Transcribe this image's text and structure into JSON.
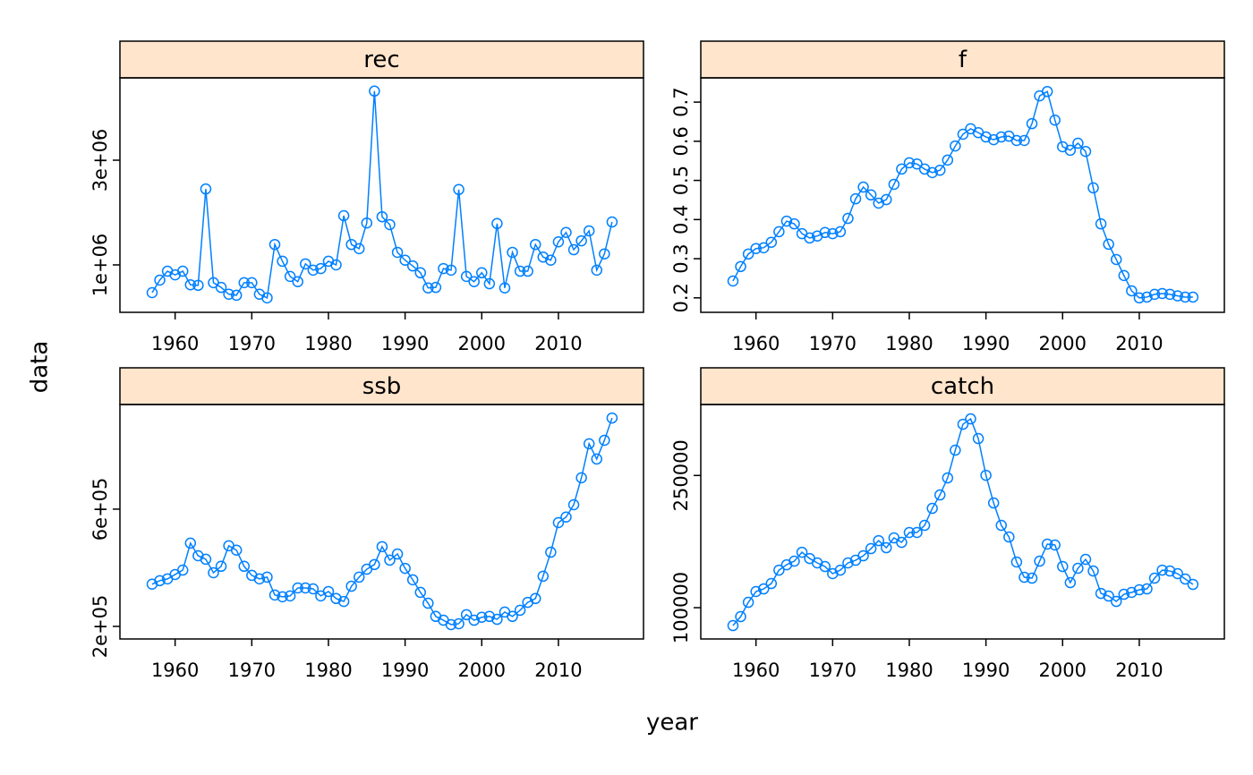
{
  "x_label": "year",
  "y_label": "data",
  "chart_data": [
    {
      "type": "line",
      "title": "rec",
      "color": "#0080ff",
      "x": [
        1957,
        1958,
        1959,
        1960,
        1961,
        1962,
        1963,
        1964,
        1965,
        1966,
        1967,
        1968,
        1969,
        1970,
        1971,
        1972,
        1973,
        1974,
        1975,
        1976,
        1977,
        1978,
        1979,
        1980,
        1981,
        1982,
        1983,
        1984,
        1985,
        1986,
        1987,
        1988,
        1989,
        1990,
        1991,
        1992,
        1993,
        1994,
        1995,
        1996,
        1997,
        1998,
        1999,
        2000,
        2001,
        2002,
        2003,
        2004,
        2005,
        2006,
        2007,
        2008,
        2009,
        2010,
        2011,
        2012,
        2013,
        2014,
        2015,
        2016,
        2017
      ],
      "values": [
        470000,
        710000,
        880000,
        810000,
        880000,
        620000,
        610000,
        2450000,
        660000,
        570000,
        440000,
        420000,
        660000,
        660000,
        440000,
        370000,
        1390000,
        1070000,
        780000,
        680000,
        1020000,
        900000,
        930000,
        1070000,
        1000000,
        1940000,
        1390000,
        1310000,
        1800000,
        4320000,
        1920000,
        1770000,
        1240000,
        1090000,
        980000,
        850000,
        560000,
        570000,
        930000,
        900000,
        2440000,
        780000,
        680000,
        850000,
        640000,
        1790000,
        560000,
        1240000,
        880000,
        880000,
        1390000,
        1150000,
        1090000,
        1440000,
        1620000,
        1290000,
        1460000,
        1650000,
        900000,
        1210000,
        1820000
      ],
      "xlim": [
        1952.8,
        2021.1
      ],
      "xticks": [
        1960,
        1970,
        1980,
        1990,
        2000,
        2010
      ],
      "ylim": [
        94000,
        4573000
      ],
      "yticks": [
        {
          "value": 1000000,
          "label": "1e+06"
        },
        {
          "value": 3000000,
          "label": "3e+06"
        }
      ]
    },
    {
      "type": "line",
      "title": "f",
      "color": "#0080ff",
      "x": [
        1957,
        1958,
        1959,
        1960,
        1961,
        1962,
        1963,
        1964,
        1965,
        1966,
        1967,
        1968,
        1969,
        1970,
        1971,
        1972,
        1973,
        1974,
        1975,
        1976,
        1977,
        1978,
        1979,
        1980,
        1981,
        1982,
        1983,
        1984,
        1985,
        1986,
        1987,
        1988,
        1989,
        1990,
        1991,
        1992,
        1993,
        1994,
        1995,
        1996,
        1997,
        1998,
        1999,
        2000,
        2001,
        2002,
        2003,
        2004,
        2005,
        2006,
        2007,
        2008,
        2009,
        2010,
        2011,
        2012,
        2013,
        2014,
        2015,
        2016,
        2017
      ],
      "values": [
        0.243,
        0.28,
        0.312,
        0.326,
        0.328,
        0.342,
        0.369,
        0.396,
        0.389,
        0.364,
        0.353,
        0.358,
        0.367,
        0.364,
        0.369,
        0.403,
        0.453,
        0.483,
        0.463,
        0.442,
        0.451,
        0.49,
        0.529,
        0.545,
        0.542,
        0.529,
        0.52,
        0.526,
        0.552,
        0.588,
        0.618,
        0.632,
        0.622,
        0.611,
        0.604,
        0.611,
        0.613,
        0.602,
        0.602,
        0.645,
        0.716,
        0.727,
        0.654,
        0.586,
        0.577,
        0.595,
        0.574,
        0.481,
        0.389,
        0.337,
        0.298,
        0.257,
        0.218,
        0.2,
        0.202,
        0.209,
        0.211,
        0.209,
        0.205,
        0.202,
        0.202
      ],
      "xlim": [
        1952.8,
        2021.1
      ],
      "xticks": [
        1960,
        1970,
        1980,
        1990,
        2000,
        2010
      ],
      "ylim": [
        0.163,
        0.762
      ],
      "yticks": [
        0.2,
        0.3,
        0.4,
        0.5,
        0.6,
        0.7
      ]
    },
    {
      "type": "line",
      "title": "ssb",
      "color": "#0080ff",
      "x": [
        1957,
        1958,
        1959,
        1960,
        1961,
        1962,
        1963,
        1964,
        1965,
        1966,
        1967,
        1968,
        1969,
        1970,
        1971,
        1972,
        1973,
        1974,
        1975,
        1976,
        1977,
        1978,
        1979,
        1980,
        1981,
        1982,
        1983,
        1984,
        1985,
        1986,
        1987,
        1988,
        1989,
        1990,
        1991,
        1992,
        1993,
        1994,
        1995,
        1996,
        1997,
        1998,
        1999,
        2000,
        2001,
        2002,
        2003,
        2004,
        2005,
        2006,
        2007,
        2008,
        2009,
        2010,
        2011,
        2012,
        2013,
        2014,
        2015,
        2016,
        2017
      ],
      "values": [
        344000,
        356000,
        362000,
        377000,
        392000,
        484000,
        441000,
        429000,
        383000,
        405000,
        475000,
        460000,
        405000,
        374000,
        362000,
        368000,
        307000,
        301000,
        304000,
        331000,
        331000,
        328000,
        304000,
        319000,
        295000,
        285000,
        337000,
        368000,
        395000,
        411000,
        472000,
        426000,
        447000,
        398000,
        359000,
        316000,
        279000,
        234000,
        221000,
        206000,
        209000,
        240000,
        221000,
        231000,
        234000,
        224000,
        249000,
        234000,
        255000,
        282000,
        295000,
        371000,
        453000,
        554000,
        573000,
        615000,
        707000,
        823000,
        771000,
        835000,
        911000
      ],
      "xlim": [
        1952.8,
        2021.1
      ],
      "xticks": [
        1960,
        1970,
        1980,
        1990,
        2000,
        2010
      ],
      "ylim": [
        157000,
        957000
      ],
      "yticks": [
        {
          "value": 200000,
          "label": "2e+05"
        },
        {
          "value": 600000,
          "label": "6e+05"
        }
      ]
    },
    {
      "type": "line",
      "title": "catch",
      "color": "#0080ff",
      "x": [
        1957,
        1958,
        1959,
        1960,
        1961,
        1962,
        1963,
        1964,
        1965,
        1966,
        1967,
        1968,
        1969,
        1970,
        1971,
        1972,
        1973,
        1974,
        1975,
        1976,
        1977,
        1978,
        1979,
        1980,
        1981,
        1982,
        1983,
        1984,
        1985,
        1986,
        1987,
        1988,
        1989,
        1990,
        1991,
        1992,
        1993,
        1994,
        1995,
        1996,
        1997,
        1998,
        1999,
        2000,
        2001,
        2002,
        2003,
        2004,
        2005,
        2006,
        2007,
        2008,
        2009,
        2010,
        2011,
        2012,
        2013,
        2014,
        2015,
        2016,
        2017
      ],
      "values": [
        79700,
        89850,
        106100,
        118300,
        121300,
        127400,
        142600,
        148700,
        152800,
        162900,
        155800,
        150800,
        146700,
        138600,
        142600,
        150800,
        153800,
        158900,
        167000,
        176100,
        168000,
        179200,
        174100,
        185300,
        185300,
        193400,
        212700,
        227900,
        247200,
        278700,
        308100,
        314200,
        291900,
        250200,
        218800,
        193400,
        180200,
        151800,
        134500,
        133500,
        152800,
        172100,
        171100,
        146700,
        128400,
        144700,
        154800,
        141600,
        116200,
        113200,
        107100,
        115200,
        117300,
        120300,
        121300,
        133500,
        142600,
        141600,
        138600,
        132500,
        126400
      ],
      "xlim": [
        1952.8,
        2021.1
      ],
      "xticks": [
        1960,
        1970,
        1980,
        1990,
        2000,
        2010
      ],
      "ylim": [
        64500,
        330500
      ],
      "yticks": [
        100000,
        250000
      ]
    }
  ]
}
